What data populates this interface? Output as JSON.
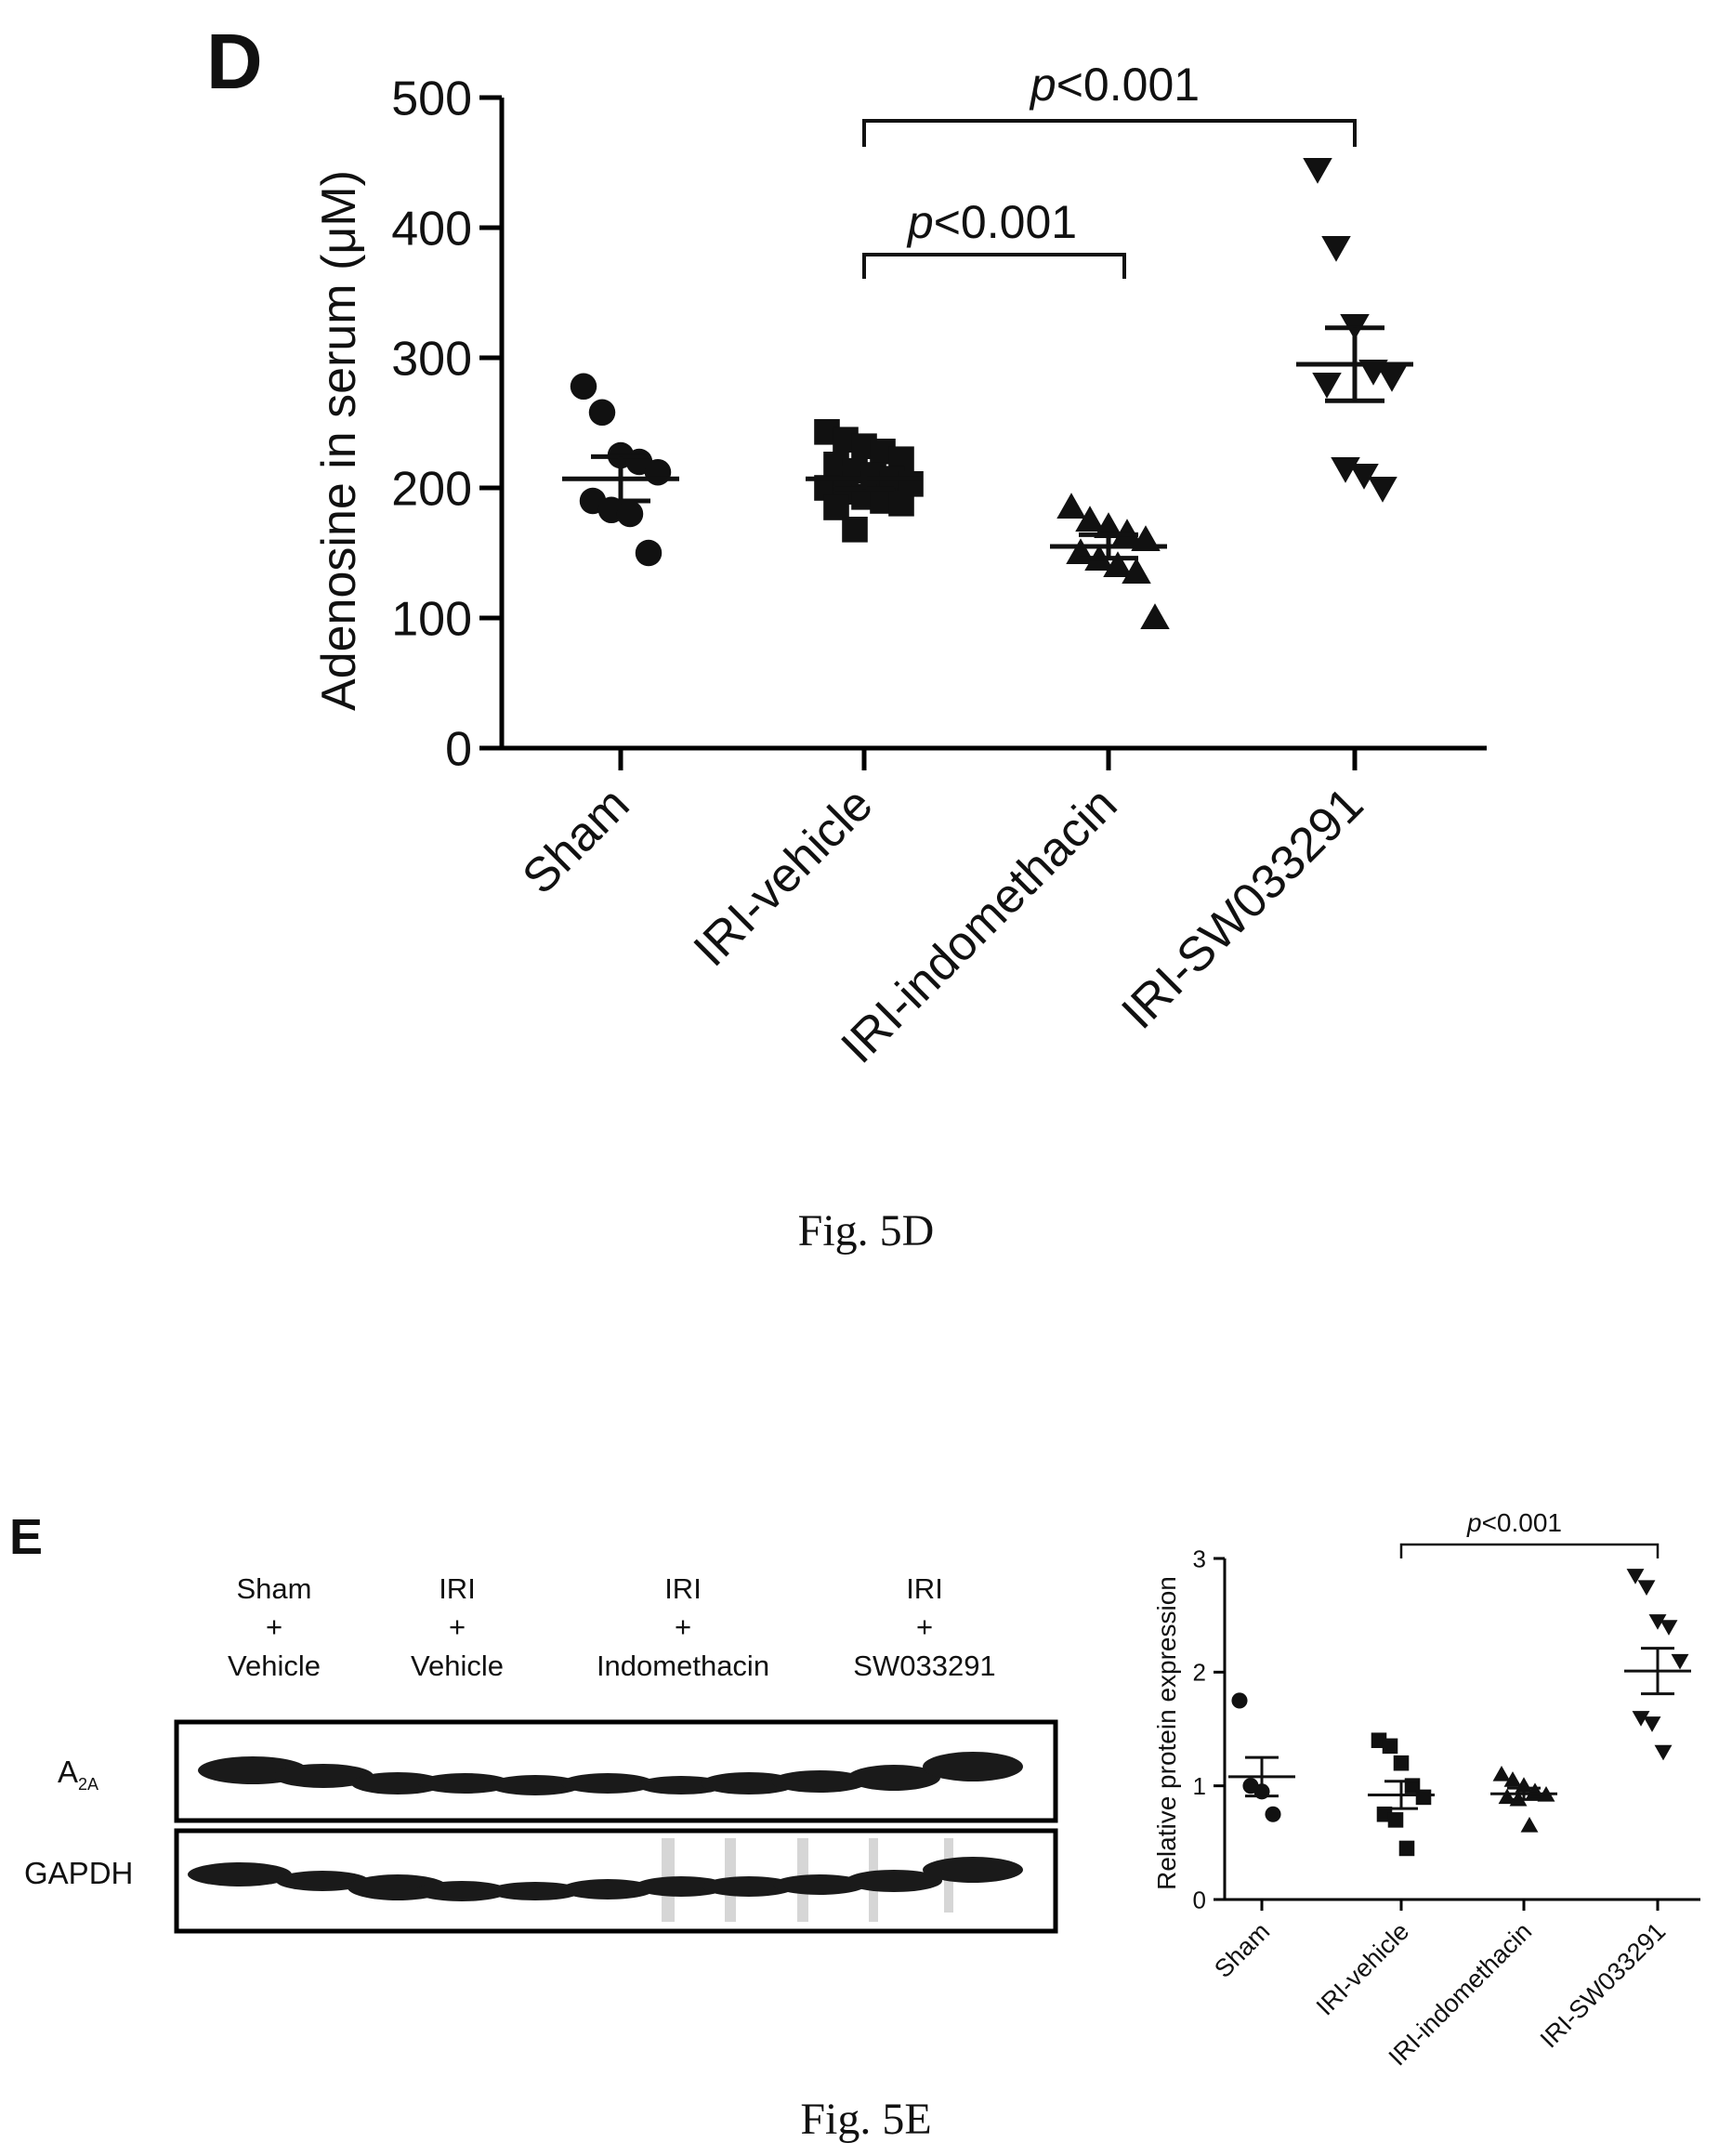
{
  "chart_data": [
    {
      "panel_label": "D",
      "type": "scatter",
      "title": "",
      "ylabel": "Adenosine in serum (μM)",
      "ylim": [
        0,
        500
      ],
      "yticks": [
        "0",
        "100",
        "200",
        "300",
        "400",
        "500"
      ],
      "categories": [
        "Sham",
        "IRI-vehicle",
        "IRI-indomethacin",
        "IRI-SW033291"
      ],
      "series": [
        {
          "category": "Sham",
          "marker": "circle",
          "values": [
            278,
            258,
            225,
            220,
            212,
            190,
            183,
            180,
            150
          ],
          "mean": 207,
          "sem": 17
        },
        {
          "category": "IRI-vehicle",
          "marker": "square",
          "values": [
            243,
            237,
            232,
            228,
            222,
            218,
            213,
            210,
            207,
            203,
            200,
            197,
            193,
            190,
            188,
            185,
            168
          ],
          "mean": 207,
          "sem": 8
        },
        {
          "category": "IRI-indomethacin",
          "marker": "triangle-up",
          "values": [
            185,
            175,
            170,
            165,
            160,
            150,
            145,
            140,
            135,
            100
          ],
          "mean": 155,
          "sem": 9
        },
        {
          "category": "IRI-SW033291",
          "marker": "triangle-down",
          "values": [
            445,
            385,
            325,
            290,
            285,
            280,
            215,
            210,
            200
          ],
          "mean": 295,
          "sem": 28
        }
      ],
      "annotations": [
        {
          "text_italic": "p",
          "text": "<0.001",
          "from": "IRI-vehicle",
          "to": "IRI-SW033291"
        },
        {
          "text_italic": "p",
          "text": "<0.001",
          "from": "IRI-vehicle",
          "to": "IRI-indomethacin"
        }
      ],
      "caption": "Fig. 5D"
    },
    {
      "panel_label": "E",
      "type": "scatter",
      "title": "",
      "ylabel": "Relative protein expression",
      "ylim": [
        0,
        3
      ],
      "yticks": [
        "0",
        "1",
        "2",
        "3"
      ],
      "categories": [
        "Sham",
        "IRI-vehicle",
        "IRI-indomethacin",
        "IRI-SW033291"
      ],
      "series": [
        {
          "category": "Sham",
          "marker": "circle",
          "values": [
            1.75,
            1.0,
            0.95,
            0.75
          ],
          "mean": 1.08,
          "sem": 0.17
        },
        {
          "category": "IRI-vehicle",
          "marker": "square",
          "values": [
            1.4,
            1.35,
            1.2,
            1.0,
            0.9,
            0.75,
            0.7,
            0.45
          ],
          "mean": 0.92,
          "sem": 0.12
        },
        {
          "category": "IRI-indomethacin",
          "marker": "triangle-up",
          "values": [
            1.1,
            1.05,
            1.0,
            0.95,
            0.92,
            0.9,
            0.88,
            0.65
          ],
          "mean": 0.93,
          "sem": 0.05
        },
        {
          "category": "IRI-SW033291",
          "marker": "triangle-down",
          "values": [
            2.85,
            2.75,
            2.45,
            2.4,
            2.1,
            1.6,
            1.55,
            1.3
          ],
          "mean": 2.01,
          "sem": 0.2
        }
      ],
      "annotations": [
        {
          "text_italic": "p",
          "text": "<0.001",
          "from": "IRI-vehicle",
          "to": "IRI-SW033291"
        }
      ],
      "caption": "Fig. 5E"
    }
  ],
  "western_blot": {
    "lanes": [
      {
        "line1": "Sham",
        "line2": "+",
        "line3": "Vehicle"
      },
      {
        "line1": "IRI",
        "line2": "+",
        "line3": "Vehicle"
      },
      {
        "line1": "IRI",
        "line2": "+",
        "line3": "Indomethacin"
      },
      {
        "line1": "IRI",
        "line2": "+",
        "line3": "SW033291"
      }
    ],
    "rows": [
      {
        "label_main": "A",
        "label_sub": "2A"
      },
      {
        "label_main": "GAPDH",
        "label_sub": ""
      }
    ]
  }
}
